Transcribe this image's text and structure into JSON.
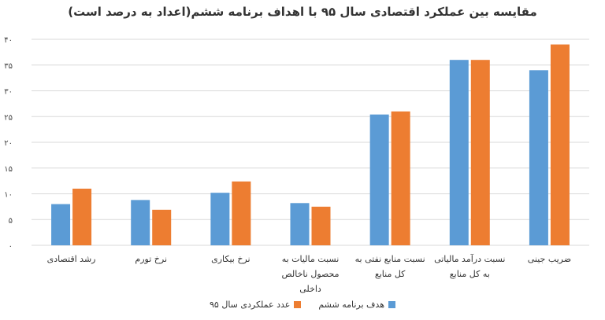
{
  "chart_data": {
    "type": "bar",
    "title": "مقایسه بین عملکرد اقتصادی سال ۹۵ با اهداف برنامه ششم(اعداد به درصد است)",
    "categories": [
      [
        "رشد اقتصادی"
      ],
      [
        "نرخ تورم"
      ],
      [
        "نرخ بیکاری"
      ],
      [
        "نسبت مالیات به",
        "محصول ناخالص",
        "داخلی"
      ],
      [
        "نسبت منابع نفتی به",
        "کل منابع"
      ],
      [
        "نسبت درآمد مالیاتی",
        "به کل منابع"
      ],
      [
        "ضریب جینی"
      ]
    ],
    "series": [
      {
        "name": "هدف برنامه ششم",
        "color": "#5b9bd5",
        "values": [
          8,
          8.8,
          10.2,
          8.2,
          25.4,
          36,
          34
        ]
      },
      {
        "name": "عدد عملکردی سال ۹۵",
        "color": "#ed7d31",
        "values": [
          11,
          6.9,
          12.4,
          7.5,
          26,
          36,
          39
        ]
      }
    ],
    "y_ticks": [
      "۰",
      "۵",
      "۱۰",
      "۱۵",
      "۲۰",
      "۲۵",
      "۳۰",
      "۳۵",
      "۴۰"
    ],
    "ylim": [
      0,
      40
    ],
    "grid": true,
    "legend_position": "bottom"
  }
}
